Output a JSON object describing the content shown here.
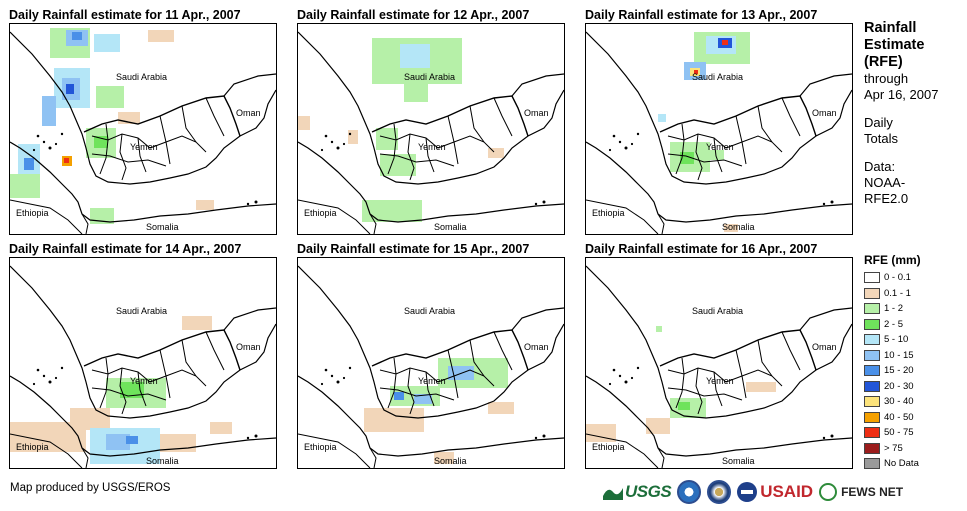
{
  "panels": [
    {
      "id": "p1",
      "title": "Daily Rainfall estimate for 11 Apr., 2007"
    },
    {
      "id": "p2",
      "title": "Daily Rainfall estimate for 12 Apr., 2007"
    },
    {
      "id": "p3",
      "title": "Daily Rainfall estimate for 13 Apr., 2007"
    },
    {
      "id": "p4",
      "title": "Daily Rainfall estimate for 14 Apr., 2007"
    },
    {
      "id": "p5",
      "title": "Daily Rainfall estimate for 15 Apr., 2007"
    },
    {
      "id": "p6",
      "title": "Daily Rainfall estimate for 16 Apr., 2007"
    }
  ],
  "map_labels": {
    "saudi": "Saudi Arabia",
    "oman": "Oman",
    "yemen": "Yemen",
    "ethiopia": "Ethiopia",
    "somalia": "Somalia"
  },
  "side": {
    "title_lines": [
      "Rainfall",
      "Estimate",
      "(RFE)"
    ],
    "through_lines": [
      "through",
      "Apr 16, 2007"
    ],
    "daily_lines": [
      "Daily",
      "Totals"
    ],
    "data_lines": [
      "Data:",
      "NOAA-",
      "RFE2.0"
    ]
  },
  "legend": {
    "title": "RFE (mm)",
    "items": [
      {
        "label": "0 - 0.1",
        "color": "#ffffff"
      },
      {
        "label": "0.1 - 1",
        "color": "#f2d6b9"
      },
      {
        "label": "1 - 2",
        "color": "#b6f0a8"
      },
      {
        "label": "2 - 5",
        "color": "#6fe35c"
      },
      {
        "label": "5 - 10",
        "color": "#b4e6f7"
      },
      {
        "label": "10 - 15",
        "color": "#8fc2f3"
      },
      {
        "label": "15 - 20",
        "color": "#4a90e8"
      },
      {
        "label": "20 - 30",
        "color": "#2255d8"
      },
      {
        "label": "30 - 40",
        "color": "#fce37b"
      },
      {
        "label": "40 - 50",
        "color": "#f4a000"
      },
      {
        "label": "50 - 75",
        "color": "#ee2e14"
      },
      {
        "label": "> 75",
        "color": "#9b1c1c"
      },
      {
        "label": "No Data",
        "color": "#9a9a9a"
      }
    ]
  },
  "footer": "Map produced by USGS/EROS",
  "logos": {
    "usgs": "USGS",
    "usaid": "USAID",
    "fews": "FEWS NET"
  },
  "icons": [
    "usgs-logo-icon",
    "noaa-seal-icon",
    "state-dept-seal-icon",
    "usaid-logo-icon",
    "fews-net-logo-icon"
  ]
}
